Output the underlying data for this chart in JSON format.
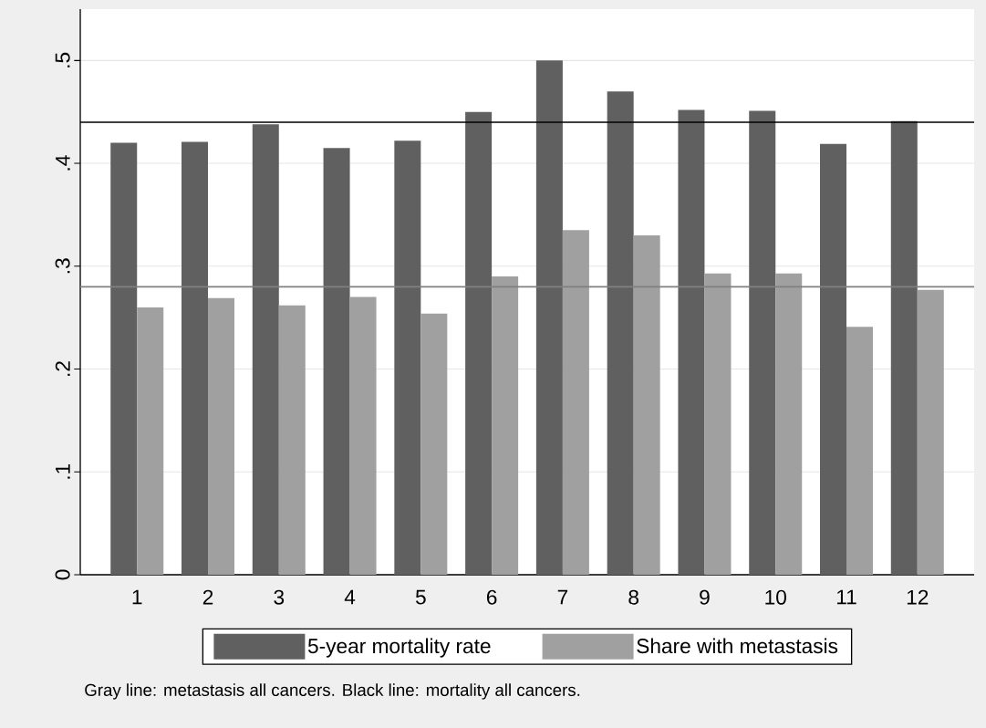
{
  "chart_data": {
    "type": "bar",
    "categories": [
      "1",
      "2",
      "3",
      "4",
      "5",
      "6",
      "7",
      "8",
      "9",
      "10",
      "11",
      "12"
    ],
    "series": [
      {
        "name": "5-year mortality rate",
        "color": "#606060",
        "values": [
          0.42,
          0.421,
          0.438,
          0.415,
          0.422,
          0.45,
          0.5,
          0.47,
          0.452,
          0.451,
          0.419,
          0.441
        ]
      },
      {
        "name": "Share with metastasis",
        "color": "#a0a0a0",
        "values": [
          0.26,
          0.269,
          0.262,
          0.27,
          0.254,
          0.29,
          0.335,
          0.33,
          0.293,
          0.293,
          0.241,
          0.277
        ]
      }
    ],
    "ylim": [
      0,
      0.55
    ],
    "yticks": [
      0,
      {
        "value": 0.1,
        "label": ".1"
      },
      {
        "value": 0.2,
        "label": ".2"
      },
      {
        "value": 0.3,
        "label": ".3"
      },
      {
        "value": 0.4,
        "label": ".4"
      },
      {
        "value": 0.5,
        "label": ".5"
      }
    ],
    "grid": "y",
    "legend": "bottom",
    "ref_lines": [
      {
        "axis": "y",
        "value": 0.44,
        "color": "#000000"
      },
      {
        "axis": "y",
        "value": 0.28,
        "color": "#808080"
      }
    ],
    "annotations": [
      "Gray line: metastasis all cancers. Black line: mortality all cancers."
    ]
  }
}
